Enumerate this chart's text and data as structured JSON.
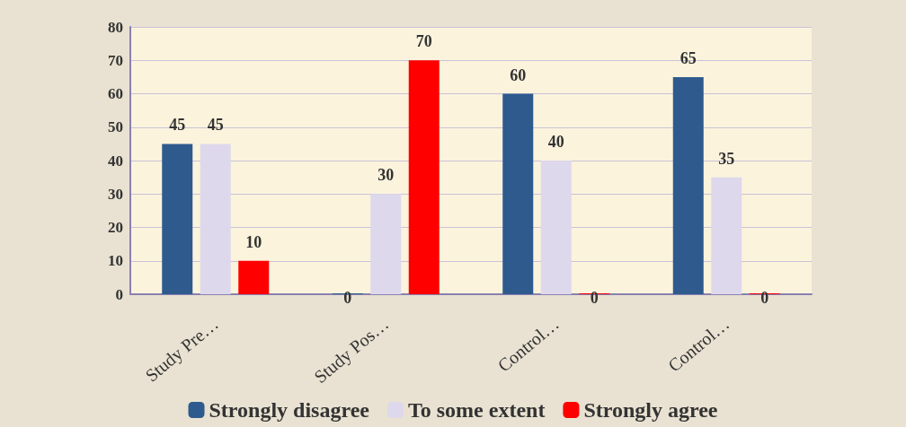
{
  "chart_data": {
    "type": "bar",
    "categories": [
      "Study Pre…",
      "Study Pos…",
      "Control…",
      "Control…"
    ],
    "series": [
      {
        "name": "Strongly disagree",
        "color": "#2e5a8e",
        "values": [
          45,
          0,
          60,
          65
        ]
      },
      {
        "name": "To some extent",
        "color": "#ddd8ec",
        "values": [
          45,
          30,
          40,
          35
        ]
      },
      {
        "name": "Strongly agree",
        "color": "#ff0000",
        "values": [
          10,
          70,
          0,
          0
        ]
      }
    ],
    "ylim": [
      0,
      80
    ],
    "yticks": [
      0,
      10,
      20,
      30,
      40,
      50,
      60,
      70,
      80
    ],
    "grid": "y",
    "legend": "bottom",
    "data_labels": true
  }
}
